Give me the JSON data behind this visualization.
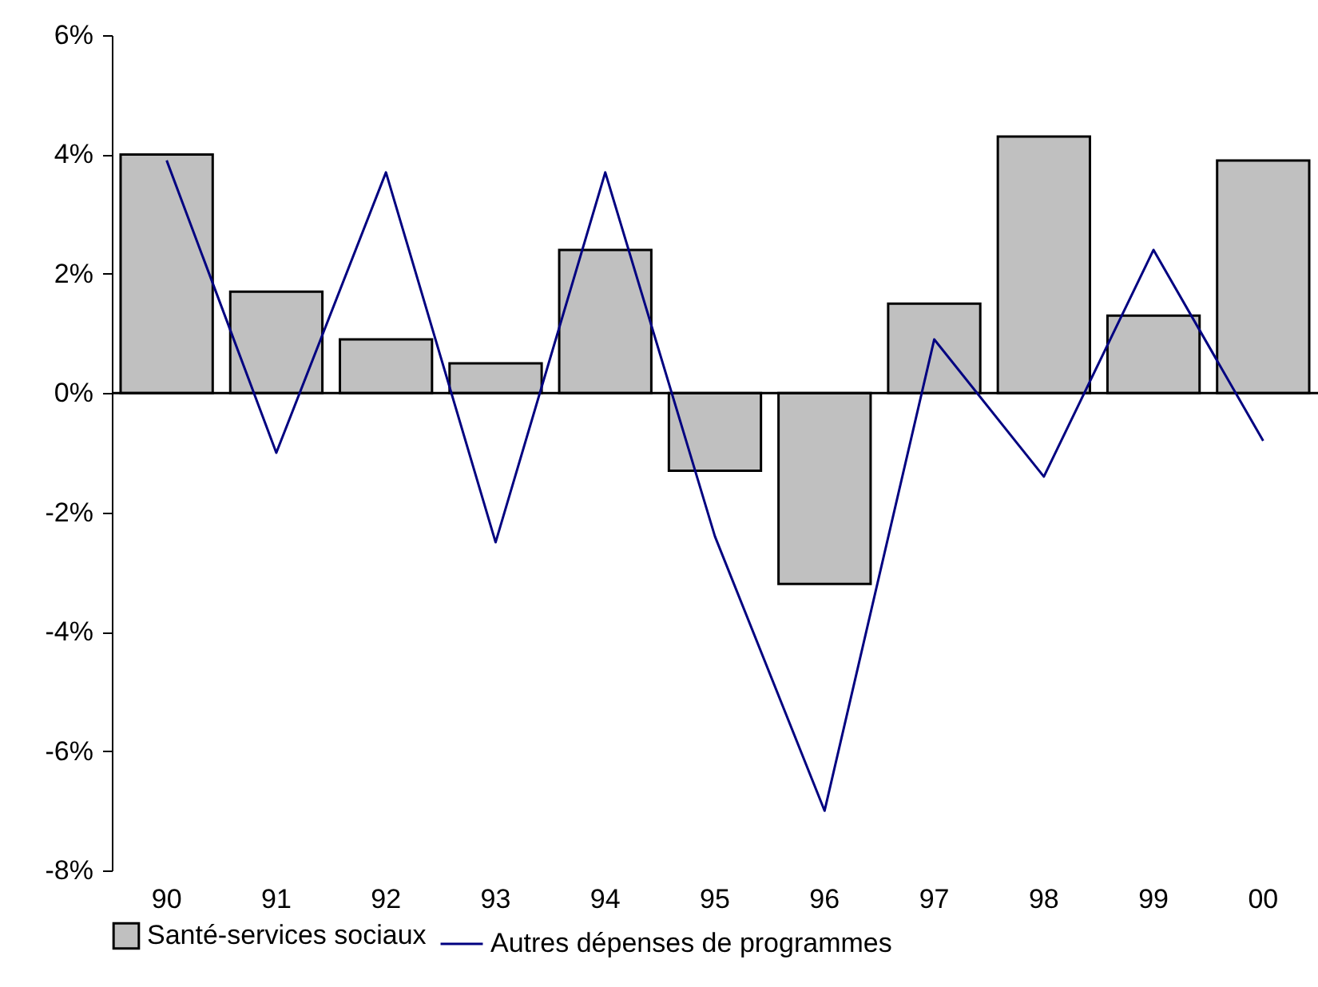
{
  "chart_data": {
    "type": "bar",
    "categories": [
      "90",
      "91",
      "92",
      "93",
      "94",
      "95",
      "96",
      "97",
      "98",
      "99",
      "00"
    ],
    "series": [
      {
        "name": "Santé-services sociaux",
        "color": "#c0c0c0",
        "values": [
          4.0,
          1.7,
          0.9,
          0.5,
          2.4,
          -1.3,
          -3.2,
          1.5,
          4.3,
          1.3,
          3.9
        ]
      },
      {
        "name": "Autres dépenses de programmes",
        "type": "line",
        "color": "#000080",
        "values": [
          3.9,
          -1.0,
          3.7,
          -2.5,
          3.7,
          -2.4,
          -7.0,
          0.9,
          -1.4,
          2.4,
          -0.8
        ]
      }
    ],
    "ylim": [
      -8,
      6
    ],
    "yticks": [
      {
        "value": -8,
        "label": "-8%"
      },
      {
        "value": -6,
        "label": "-6%"
      },
      {
        "value": -4,
        "label": "-4%"
      },
      {
        "value": -2,
        "label": "-2%"
      },
      {
        "value": 0,
        "label": "0%"
      },
      {
        "value": 2,
        "label": "2%"
      },
      {
        "value": 4,
        "label": "4%"
      },
      {
        "value": 6,
        "label": "6%"
      }
    ],
    "legend": "bottom",
    "marker": "none",
    "line_style": "solid"
  }
}
